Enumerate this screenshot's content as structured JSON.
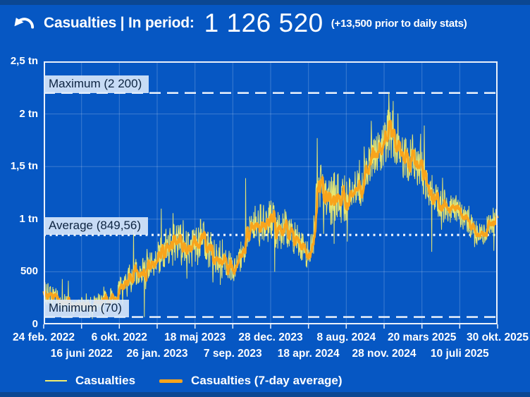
{
  "header": {
    "title": "Casualties | In period:",
    "total": "1 126 520",
    "note": "(+13,500 prior to daily stats)",
    "back_icon": "undo-arrow-icon"
  },
  "colors": {
    "background": "#0657C3",
    "strip": "#0B4792",
    "grid": "rgba(255,255,255,0.22)",
    "plot_border": "#EAF0FA",
    "daily_line": "#F2EE6D",
    "avg_line": "#F8A41C",
    "annotation_line": "#F4F8FE",
    "annotation_bg": "rgba(221,234,251,0.9)",
    "annotation_text": "#0C2340",
    "text": "#FFFFFF"
  },
  "chart_data": {
    "type": "line",
    "title": "Casualties | In period: 1 126 520",
    "x_axis": {
      "tick_labels": [
        "24 feb. 2022",
        "16 juni 2022",
        "6 okt. 2022",
        "26 jan. 2023",
        "18 maj 2023",
        "7 sep. 2023",
        "28 dec. 2023",
        "18 apr. 2024",
        "8 aug. 2024",
        "28 nov. 2024",
        "20 mars 2025",
        "10 juli 2025",
        "30 okt. 2025"
      ],
      "days_span": 1344
    },
    "y_axis": {
      "tick_labels": [
        "0",
        "500",
        "1 tn",
        "1,5 tn",
        "2 tn",
        "2,5 tn"
      ],
      "min": 0,
      "max": 2500,
      "grid_step": 500
    },
    "annotations": {
      "maximum": {
        "label": "Maximum (2 200)",
        "value": 2200
      },
      "average": {
        "label": "Average (849,56)",
        "value": 849.56
      },
      "minimum": {
        "label": "Minimum (70)",
        "value": 70
      }
    },
    "series": [
      {
        "name": "Casualties",
        "style": "thin-yellow-daily"
      },
      {
        "name": "Casualties (7-day average)",
        "style": "thick-orange-average"
      }
    ],
    "avg_control_points": [
      [
        0,
        260
      ],
      [
        14,
        285
      ],
      [
        28,
        265
      ],
      [
        42,
        250
      ],
      [
        56,
        235
      ],
      [
        70,
        190
      ],
      [
        84,
        155
      ],
      [
        98,
        170
      ],
      [
        112,
        185
      ],
      [
        126,
        175
      ],
      [
        140,
        190
      ],
      [
        154,
        200
      ],
      [
        168,
        212
      ],
      [
        182,
        228
      ],
      [
        196,
        240
      ],
      [
        210,
        262
      ],
      [
        224,
        310
      ],
      [
        238,
        375
      ],
      [
        252,
        450
      ],
      [
        266,
        510
      ],
      [
        280,
        490
      ],
      [
        294,
        545
      ],
      [
        308,
        575
      ],
      [
        322,
        545
      ],
      [
        336,
        615
      ],
      [
        350,
        680
      ],
      [
        364,
        745
      ],
      [
        378,
        800
      ],
      [
        392,
        770
      ],
      [
        406,
        820
      ],
      [
        420,
        765
      ],
      [
        434,
        705
      ],
      [
        448,
        765
      ],
      [
        462,
        820
      ],
      [
        476,
        775
      ],
      [
        490,
        680
      ],
      [
        504,
        645
      ],
      [
        518,
        605
      ],
      [
        532,
        565
      ],
      [
        546,
        575
      ],
      [
        560,
        548
      ],
      [
        574,
        565
      ],
      [
        588,
        655
      ],
      [
        602,
        800
      ],
      [
        616,
        920
      ],
      [
        630,
        975
      ],
      [
        644,
        1000
      ],
      [
        658,
        950
      ],
      [
        672,
        1000
      ],
      [
        686,
        940
      ],
      [
        700,
        860
      ],
      [
        714,
        930
      ],
      [
        728,
        890
      ],
      [
        742,
        820
      ],
      [
        756,
        780
      ],
      [
        770,
        705
      ],
      [
        784,
        655
      ],
      [
        798,
        800
      ],
      [
        812,
        1340
      ],
      [
        826,
        1310
      ],
      [
        840,
        1205
      ],
      [
        854,
        1180
      ],
      [
        868,
        1240
      ],
      [
        882,
        1185
      ],
      [
        896,
        1205
      ],
      [
        910,
        1260
      ],
      [
        924,
        1300
      ],
      [
        938,
        1285
      ],
      [
        952,
        1400
      ],
      [
        966,
        1550
      ],
      [
        980,
        1650
      ],
      [
        994,
        1610
      ],
      [
        1008,
        1700
      ],
      [
        1022,
        1840
      ],
      [
        1036,
        1720
      ],
      [
        1050,
        1655
      ],
      [
        1064,
        1600
      ],
      [
        1078,
        1565
      ],
      [
        1092,
        1620
      ],
      [
        1106,
        1505
      ],
      [
        1120,
        1450
      ],
      [
        1134,
        1310
      ],
      [
        1148,
        1225
      ],
      [
        1162,
        1180
      ],
      [
        1176,
        1125
      ],
      [
        1190,
        1150
      ],
      [
        1204,
        1085
      ],
      [
        1218,
        1105
      ],
      [
        1232,
        1050
      ],
      [
        1246,
        1000
      ],
      [
        1260,
        955
      ],
      [
        1274,
        900
      ],
      [
        1288,
        845
      ],
      [
        1302,
        860
      ],
      [
        1316,
        940
      ],
      [
        1330,
        1000
      ],
      [
        1344,
        960
      ]
    ],
    "daily_spikes": [
      [
        4,
        400
      ],
      [
        55,
        430
      ],
      [
        73,
        415
      ],
      [
        266,
        900
      ],
      [
        298,
        70
      ],
      [
        348,
        1100
      ],
      [
        598,
        1390
      ],
      [
        684,
        500
      ],
      [
        810,
        1770
      ],
      [
        1022,
        2200
      ],
      [
        1127,
        1890
      ],
      [
        1149,
        690
      ],
      [
        1333,
        700
      ]
    ],
    "noise_eras": [
      [
        0,
        230,
        0.42
      ],
      [
        230,
        560,
        0.25
      ],
      [
        560,
        900,
        0.2
      ],
      [
        900,
        1345,
        0.13
      ]
    ],
    "noise_seed": 20
  }
}
